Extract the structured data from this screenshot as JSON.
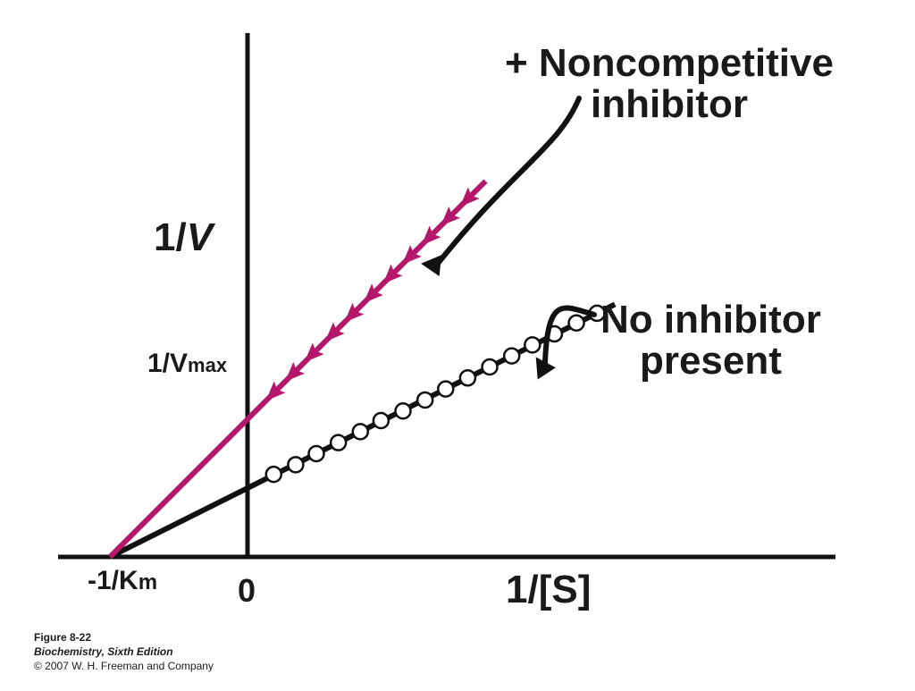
{
  "chart_data": {
    "type": "line",
    "title": "",
    "xlabel": "1/[S]",
    "ylabel": "1/V",
    "xlim": [
      -1.0,
      5.4
    ],
    "ylim": [
      0,
      3.45
    ],
    "series": [
      {
        "name": "No inhibitor present",
        "color": "#111111",
        "marker": "open-circle",
        "x_start": -1.0,
        "x_end": 2.67,
        "intercept_y": 0.5,
        "slope": 0.5,
        "points": [
          {
            "x": 0.19,
            "y": 0.6
          },
          {
            "x": 0.35,
            "y": 0.67
          },
          {
            "x": 0.5,
            "y": 0.75
          },
          {
            "x": 0.66,
            "y": 0.83
          },
          {
            "x": 0.82,
            "y": 0.91
          },
          {
            "x": 0.97,
            "y": 0.99
          },
          {
            "x": 1.13,
            "y": 1.06
          },
          {
            "x": 1.29,
            "y": 1.14
          },
          {
            "x": 1.44,
            "y": 1.22
          },
          {
            "x": 1.6,
            "y": 1.3
          },
          {
            "x": 1.76,
            "y": 1.38
          },
          {
            "x": 1.92,
            "y": 1.46
          },
          {
            "x": 2.07,
            "y": 1.54
          },
          {
            "x": 2.23,
            "y": 1.62
          },
          {
            "x": 2.39,
            "y": 1.7
          },
          {
            "x": 2.54,
            "y": 1.77
          }
        ]
      },
      {
        "name": "+ Noncompetitive inhibitor",
        "color": "#b5186b",
        "marker": "triangle-down",
        "x_start": -1.0,
        "x_end": 1.73,
        "intercept_y": 1.0,
        "slope": 1.0,
        "points": [
          {
            "x": 0.17,
            "y": 1.17
          },
          {
            "x": 0.31,
            "y": 1.31
          },
          {
            "x": 0.45,
            "y": 1.45
          },
          {
            "x": 0.6,
            "y": 1.6
          },
          {
            "x": 0.74,
            "y": 1.74
          },
          {
            "x": 0.88,
            "y": 1.88
          },
          {
            "x": 1.02,
            "y": 2.02
          },
          {
            "x": 1.16,
            "y": 2.16
          },
          {
            "x": 1.3,
            "y": 2.3
          },
          {
            "x": 1.44,
            "y": 2.44
          },
          {
            "x": 1.58,
            "y": 2.58
          }
        ]
      }
    ],
    "annotations": {
      "vmax": {
        "x": 0,
        "y": 1.0
      },
      "km": {
        "x": -1.0,
        "y": 0
      },
      "origin_label": "0",
      "noncomp_arrow_target": {
        "x": 1.15,
        "y": 2.15
      },
      "noinh_arrow_target": {
        "x": 2.05,
        "y": 1.53
      }
    }
  },
  "labels": {
    "y_axis_main": "1/",
    "y_axis_var": "V",
    "vmax_prefix": "1/V",
    "vmax_sub": "max",
    "km_prefix": "-1/K",
    "km_sub": "m",
    "zero": "0",
    "x_axis": "1/[S]",
    "noncomp_line1": "+ Noncompetitive",
    "noncomp_line2": "inhibitor",
    "noinh_line1": "No inhibitor",
    "noinh_line2": "present"
  },
  "caption": {
    "figure": "Figure 8-22",
    "book": "Biochemistry, Sixth Edition",
    "copyright": "© 2007 W. H. Freeman and Company"
  }
}
